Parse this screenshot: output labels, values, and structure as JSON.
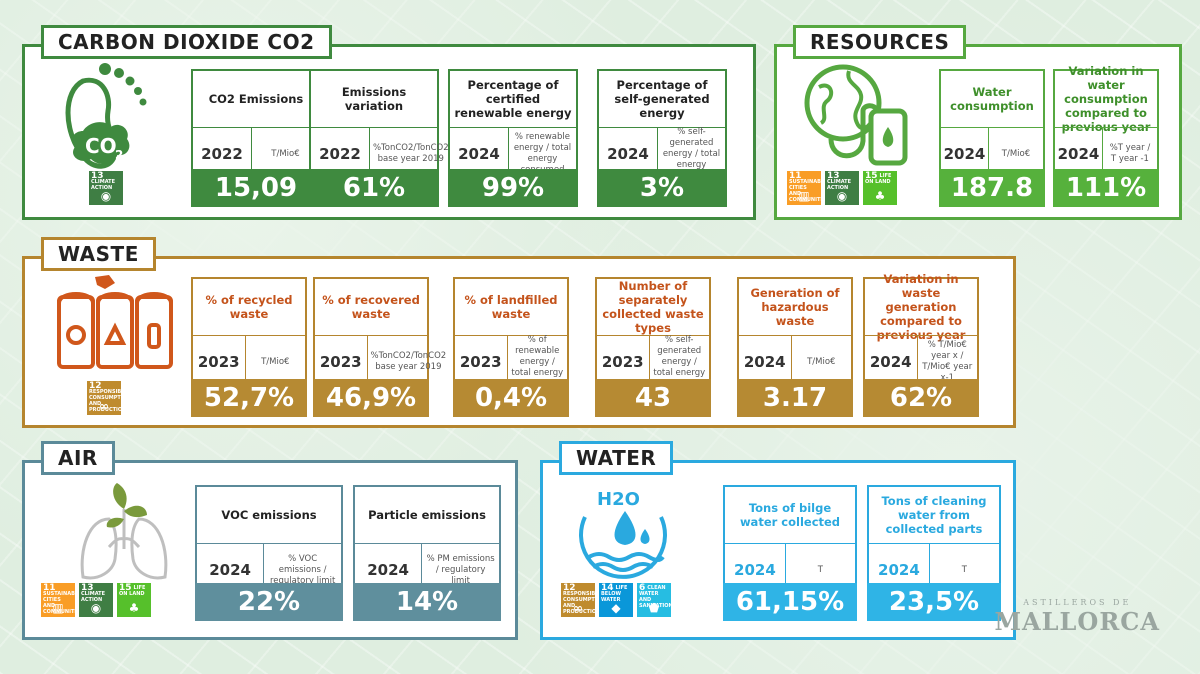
{
  "sections": {
    "co2": {
      "title": "CARBON DIOXIDE CO2",
      "cards": [
        {
          "head": "CO2 Emissions",
          "year": "2022",
          "unit": "T/Mio€",
          "value": "15,09"
        },
        {
          "head": "Emissions variation",
          "year": "2022",
          "unit": "%TonCO2/TonCO2 base year 2019",
          "value": "61%"
        },
        {
          "head": "Percentage of certified renewable energy",
          "year": "2024",
          "unit": "% renewable energy / total energy consumed",
          "value": "99%"
        },
        {
          "head": "Percentage of self-generated energy",
          "year": "2024",
          "unit": "% self-generated energy / total energy consumed",
          "value": "3%"
        }
      ],
      "sdg": [
        {
          "num": "13",
          "label": "CLIMATE ACTION",
          "color": "#3f7e44",
          "glyph": "eye-icon"
        }
      ],
      "icon": "footprint-co2-icon"
    },
    "resources": {
      "title": "RESOURCES",
      "cards": [
        {
          "head": "Water consumption",
          "year": "2024",
          "unit": "T/Mio€",
          "value": "187.8"
        },
        {
          "head": "Variation in water consumption compared to previous year",
          "year": "2024",
          "unit": "%T year / T year -1",
          "value": "111%"
        }
      ],
      "sdg": [
        {
          "num": "11",
          "label": "SUSTAINABLE CITIES AND COMMUNITIES",
          "color": "#f99d26",
          "glyph": "city-icon"
        },
        {
          "num": "13",
          "label": "CLIMATE ACTION",
          "color": "#3f7e44",
          "glyph": "eye-icon"
        },
        {
          "num": "15",
          "label": "LIFE ON LAND",
          "color": "#56c02b",
          "glyph": "tree-icon"
        }
      ],
      "icon": "globe-bottle-icon"
    },
    "waste": {
      "title": "WASTE",
      "cards": [
        {
          "head": "% of recycled waste",
          "year": "2023",
          "unit": "T/Mio€",
          "value": "52,7%"
        },
        {
          "head": "% of recovered waste",
          "year": "2023",
          "unit": "%TonCO2/TonCO2 base year 2019",
          "value": "46,9%"
        },
        {
          "head": "% of landfilled waste",
          "year": "2023",
          "unit": "% of renewable energy / total energy consumed",
          "value": "0,4%"
        },
        {
          "head": "Number of separately collected waste types",
          "year": "2023",
          "unit": "% self-generated energy / total energy consumed",
          "value": "43"
        },
        {
          "head": "Generation of hazardous waste",
          "year": "2024",
          "unit": "T/Mio€",
          "value": "3.17"
        },
        {
          "head": "Variation in waste generation compared to previous year",
          "year": "2024",
          "unit": "% T/Mio€ year x / T/Mio€ year x-1",
          "value": "62%"
        }
      ],
      "sdg": [
        {
          "num": "12",
          "label": "RESPONSIBLE CONSUMPTION AND PRODUCTION",
          "color": "#bf8b2e",
          "glyph": "infinity-icon"
        }
      ],
      "icon": "recycle-bins-icon"
    },
    "air": {
      "title": "AIR",
      "cards": [
        {
          "head": "VOC emissions",
          "year": "2024",
          "unit": "% VOC emissions / regulatory limit",
          "value": "22%"
        },
        {
          "head": "Particle emissions",
          "year": "2024",
          "unit": "% PM emissions / regulatory limit",
          "value": "14%"
        }
      ],
      "sdg": [
        {
          "num": "11",
          "label": "SUSTAINABLE CITIES AND COMMUNITIES",
          "color": "#f99d26",
          "glyph": "city-icon"
        },
        {
          "num": "13",
          "label": "CLIMATE ACTION",
          "color": "#3f7e44",
          "glyph": "eye-icon"
        },
        {
          "num": "15",
          "label": "LIFE ON LAND",
          "color": "#56c02b",
          "glyph": "tree-icon"
        }
      ],
      "icon": "lungs-plant-icon"
    },
    "water": {
      "title": "WATER",
      "cards": [
        {
          "head": "Tons of bilge water collected",
          "year": "2024",
          "unit": "T",
          "value": "61,15%"
        },
        {
          "head": "Tons of cleaning water from collected parts",
          "year": "2024",
          "unit": "T",
          "value": "23,5%"
        }
      ],
      "sdg": [
        {
          "num": "12",
          "label": "RESPONSIBLE CONSUMPTION AND PRODUCTION",
          "color": "#bf8b2e",
          "glyph": "infinity-icon"
        },
        {
          "num": "14",
          "label": "LIFE BELOW WATER",
          "color": "#0a97d9",
          "glyph": "fish-icon"
        },
        {
          "num": "6",
          "label": "CLEAN WATER AND SANITATION",
          "color": "#26bde2",
          "glyph": "water-drop-icon"
        }
      ],
      "icon": "h2o-icon",
      "h2o": "H2O"
    }
  },
  "logo": {
    "top": "ASTILLEROS DE",
    "name": "MALLORCA"
  }
}
